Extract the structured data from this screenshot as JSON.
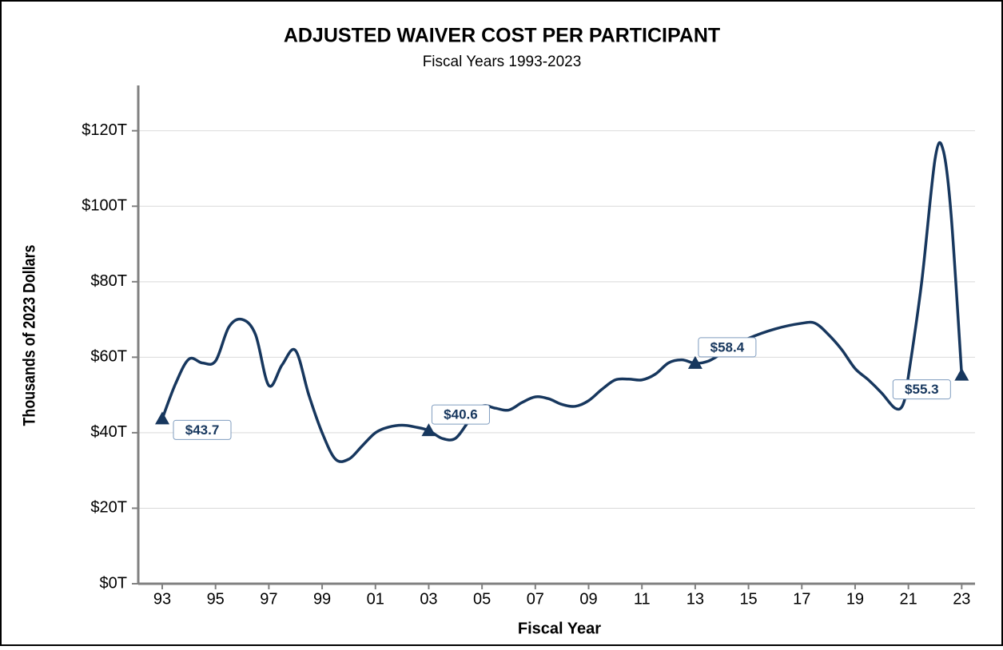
{
  "chart_data": {
    "type": "line",
    "title": "ADJUSTED WAIVER COST PER PARTICIPANT",
    "subtitle": "Fiscal Years 1993-2023",
    "x_label": "Fiscal Year",
    "y_label": "Thousands of 2023 Dollars",
    "x": [
      1993,
      1993.5,
      1994,
      1994.5,
      1995,
      1995.5,
      1996,
      1996.5,
      1997,
      1997.5,
      1998,
      1998.5,
      1999,
      1999.5,
      2000,
      2000.5,
      2001,
      2001.5,
      2002,
      2002.5,
      2003,
      2003.5,
      2004,
      2004.5,
      2005,
      2005.5,
      2006,
      2006.5,
      2007,
      2007.5,
      2008,
      2008.5,
      2009,
      2009.5,
      2010,
      2010.5,
      2011,
      2011.5,
      2012,
      2012.5,
      2013,
      2013.5,
      2014,
      2014.5,
      2015,
      2016,
      2017,
      2017.5,
      2018,
      2018.5,
      2019,
      2019.5,
      2020,
      2020.5,
      2020.8,
      2021,
      2021.5,
      2022,
      2022.3,
      2022.6,
      2023
    ],
    "series": [
      {
        "name": "Adjusted waiver cost per participant",
        "color": "#17375e",
        "values": [
          43.7,
          53,
          59.5,
          58.5,
          59,
          68,
          70,
          66,
          52.5,
          58,
          61.8,
          50,
          40,
          33,
          33,
          36.5,
          40,
          41.5,
          42,
          41.5,
          40.6,
          38.5,
          38.5,
          43,
          47,
          46.5,
          46,
          48,
          49.5,
          49,
          47.5,
          47,
          48.5,
          51.5,
          54,
          54.2,
          54,
          55.5,
          58.5,
          59.3,
          58.4,
          59,
          61,
          63,
          65,
          67.5,
          69,
          69,
          66,
          62,
          57,
          54,
          50.5,
          46.5,
          47.5,
          55,
          80,
          112.5,
          115,
          98,
          55.3
        ]
      }
    ],
    "annotations": [
      {
        "x": 1993,
        "value": 43.7,
        "label": "$43.7"
      },
      {
        "x": 2003,
        "value": 40.6,
        "label": "$40.6"
      },
      {
        "x": 2013,
        "value": 58.4,
        "label": "$58.4"
      },
      {
        "x": 2023,
        "value": 55.3,
        "label": "$55.3"
      }
    ],
    "xlim": [
      1992.1,
      2023.5
    ],
    "xticks": [
      {
        "value": 1993,
        "label": "93"
      },
      {
        "value": 1995,
        "label": "95"
      },
      {
        "value": 1997,
        "label": "97"
      },
      {
        "value": 1999,
        "label": "99"
      },
      {
        "value": 2001,
        "label": "01"
      },
      {
        "value": 2003,
        "label": "03"
      },
      {
        "value": 2005,
        "label": "05"
      },
      {
        "value": 2007,
        "label": "07"
      },
      {
        "value": 2009,
        "label": "09"
      },
      {
        "value": 2011,
        "label": "11"
      },
      {
        "value": 2013,
        "label": "13"
      },
      {
        "value": 2015,
        "label": "15"
      },
      {
        "value": 2017,
        "label": "17"
      },
      {
        "value": 2019,
        "label": "19"
      },
      {
        "value": 2021,
        "label": "21"
      },
      {
        "value": 2023,
        "label": "23"
      }
    ],
    "ylim": [
      0,
      132
    ],
    "yticks": [
      {
        "value": 0,
        "label": "$0T"
      },
      {
        "value": 20,
        "label": "$20T"
      },
      {
        "value": 40,
        "label": "$40T"
      },
      {
        "value": 60,
        "label": "$60T"
      },
      {
        "value": 80,
        "label": "$80T"
      },
      {
        "value": 100,
        "label": "$100T"
      },
      {
        "value": 120,
        "label": "$120T"
      }
    ],
    "grid": true
  }
}
